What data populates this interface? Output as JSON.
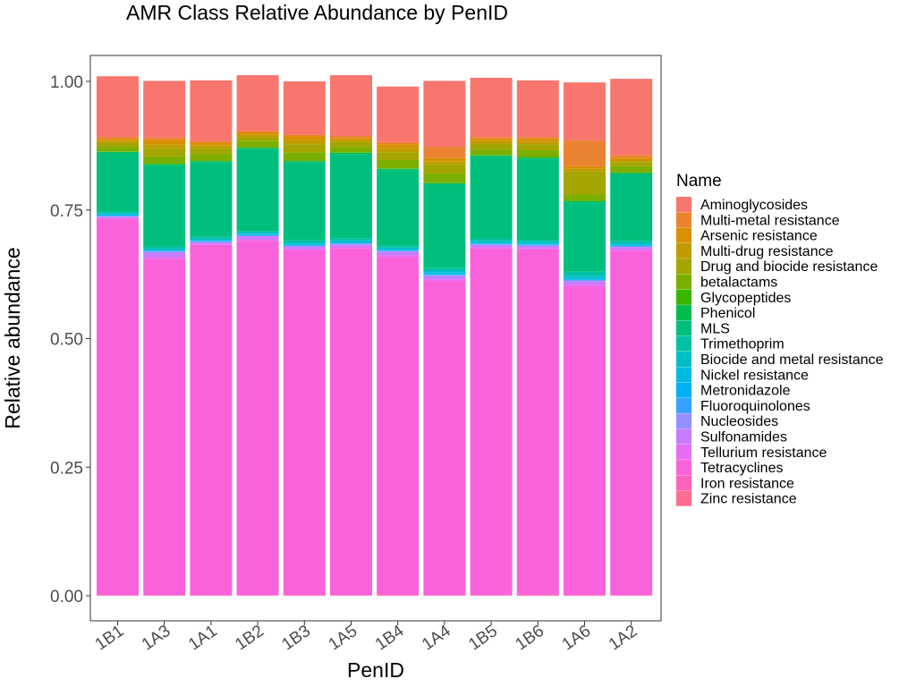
{
  "chart_data": {
    "type": "bar",
    "stacked": true,
    "title": "AMR Class Relative Abundance by PenID",
    "xlabel": "PenID",
    "ylabel": "Relative abundance",
    "ylim": [
      0,
      1
    ],
    "yticks": [
      "0.00",
      "0.25",
      "0.50",
      "0.75",
      "1.00"
    ],
    "grid": false,
    "legend_position": "right",
    "legend_title": "Name",
    "categories": [
      "1B1",
      "1A3",
      "1A1",
      "1B2",
      "1B3",
      "1A5",
      "1B4",
      "1A4",
      "1B5",
      "1B6",
      "1A6",
      "1A2"
    ],
    "series": [
      {
        "name": "Aminoglycosides",
        "color": "#F8766D",
        "values": [
          0.118,
          0.11,
          0.118,
          0.108,
          0.103,
          0.118,
          0.108,
          0.128,
          0.115,
          0.11,
          0.113,
          0.148
        ]
      },
      {
        "name": "Multi-metal resistance",
        "color": "#EA8331",
        "values": [
          0.004,
          0.005,
          0.004,
          0.004,
          0.004,
          0.004,
          0.004,
          0.022,
          0.004,
          0.004,
          0.05,
          0.006
        ]
      },
      {
        "name": "Arsenic resistance",
        "color": "#D89000",
        "values": [
          0.004,
          0.008,
          0.004,
          0.004,
          0.007,
          0.004,
          0.008,
          0.006,
          0.004,
          0.005,
          0.005,
          0.004
        ]
      },
      {
        "name": "Multi-drug resistance",
        "color": "#C09B00",
        "values": [
          0.004,
          0.008,
          0.005,
          0.004,
          0.008,
          0.004,
          0.008,
          0.006,
          0.005,
          0.005,
          0.005,
          0.004
        ]
      },
      {
        "name": "Drug and biocide resistance",
        "color": "#A3A500",
        "values": [
          0.007,
          0.016,
          0.012,
          0.008,
          0.016,
          0.01,
          0.015,
          0.018,
          0.01,
          0.012,
          0.045,
          0.008
        ]
      },
      {
        "name": "betalactams",
        "color": "#7CAE00",
        "values": [
          0.009,
          0.014,
          0.013,
          0.012,
          0.016,
          0.01,
          0.016,
          0.018,
          0.012,
          0.013,
          0.012,
          0.012
        ]
      },
      {
        "name": "Glycopeptides",
        "color": "#39B600",
        "values": [
          0.001,
          0.001,
          0.001,
          0.001,
          0.001,
          0.001,
          0.001,
          0.001,
          0.001,
          0.001,
          0.001,
          0.001
        ]
      },
      {
        "name": "Phenicol",
        "color": "#00BB4E",
        "values": [
          0.002,
          0.002,
          0.002,
          0.002,
          0.002,
          0.002,
          0.002,
          0.002,
          0.002,
          0.002,
          0.002,
          0.002
        ]
      },
      {
        "name": "MLS",
        "color": "#00BF7D",
        "values": [
          0.114,
          0.158,
          0.145,
          0.16,
          0.152,
          0.164,
          0.147,
          0.163,
          0.16,
          0.158,
          0.135,
          0.13
        ]
      },
      {
        "name": "Trimethoprim",
        "color": "#00C1A3",
        "values": [
          0.003,
          0.004,
          0.004,
          0.003,
          0.004,
          0.004,
          0.004,
          0.004,
          0.004,
          0.004,
          0.008,
          0.004
        ]
      },
      {
        "name": "Biocide and metal resistance",
        "color": "#00BFC4",
        "values": [
          0.002,
          0.002,
          0.002,
          0.002,
          0.003,
          0.003,
          0.003,
          0.004,
          0.003,
          0.003,
          0.004,
          0.003
        ]
      },
      {
        "name": "Nickel resistance",
        "color": "#00BAE0",
        "values": [
          0.002,
          0.002,
          0.002,
          0.002,
          0.002,
          0.002,
          0.002,
          0.004,
          0.002,
          0.002,
          0.003,
          0.002
        ]
      },
      {
        "name": "Metronidazole",
        "color": "#00B0F6",
        "values": [
          0.001,
          0.001,
          0.001,
          0.001,
          0.001,
          0.001,
          0.001,
          0.001,
          0.001,
          0.001,
          0.001,
          0.001
        ]
      },
      {
        "name": "Fluoroquinolones",
        "color": "#35A2FF",
        "values": [
          0.001,
          0.001,
          0.001,
          0.001,
          0.001,
          0.001,
          0.001,
          0.001,
          0.001,
          0.001,
          0.001,
          0.001
        ]
      },
      {
        "name": "Nucleosides",
        "color": "#9590FF",
        "values": [
          0.001,
          0.002,
          0.001,
          0.001,
          0.001,
          0.001,
          0.002,
          0.002,
          0.001,
          0.001,
          0.002,
          0.001
        ]
      },
      {
        "name": "Sulfonamides",
        "color": "#C77CFF",
        "values": [
          0.003,
          0.008,
          0.003,
          0.006,
          0.004,
          0.004,
          0.006,
          0.006,
          0.004,
          0.004,
          0.006,
          0.004
        ]
      },
      {
        "name": "Tellurium resistance",
        "color": "#E76BF3",
        "values": [
          0.002,
          0.004,
          0.002,
          0.003,
          0.003,
          0.003,
          0.004,
          0.003,
          0.003,
          0.003,
          0.004,
          0.003
        ]
      },
      {
        "name": "Tetracyclines",
        "color": "#FA62DB",
        "values": [
          0.7305,
          0.6535,
          0.6805,
          0.6885,
          0.6695,
          0.6745,
          0.6555,
          0.6105,
          0.6735,
          0.6705,
          0.5985,
          0.6695
        ]
      },
      {
        "name": "Iron resistance",
        "color": "#FF62BC",
        "values": [
          0.001,
          0.001,
          0.001,
          0.001,
          0.002,
          0.001,
          0.002,
          0.001,
          0.001,
          0.002,
          0.002,
          0.001
        ]
      },
      {
        "name": "Zinc resistance",
        "color": "#FF6C91",
        "values": [
          0.0005,
          0.0005,
          0.0005,
          0.0005,
          0.0005,
          0.0005,
          0.0005,
          0.0005,
          0.0005,
          0.0005,
          0.0005,
          0.0005
        ]
      }
    ]
  }
}
